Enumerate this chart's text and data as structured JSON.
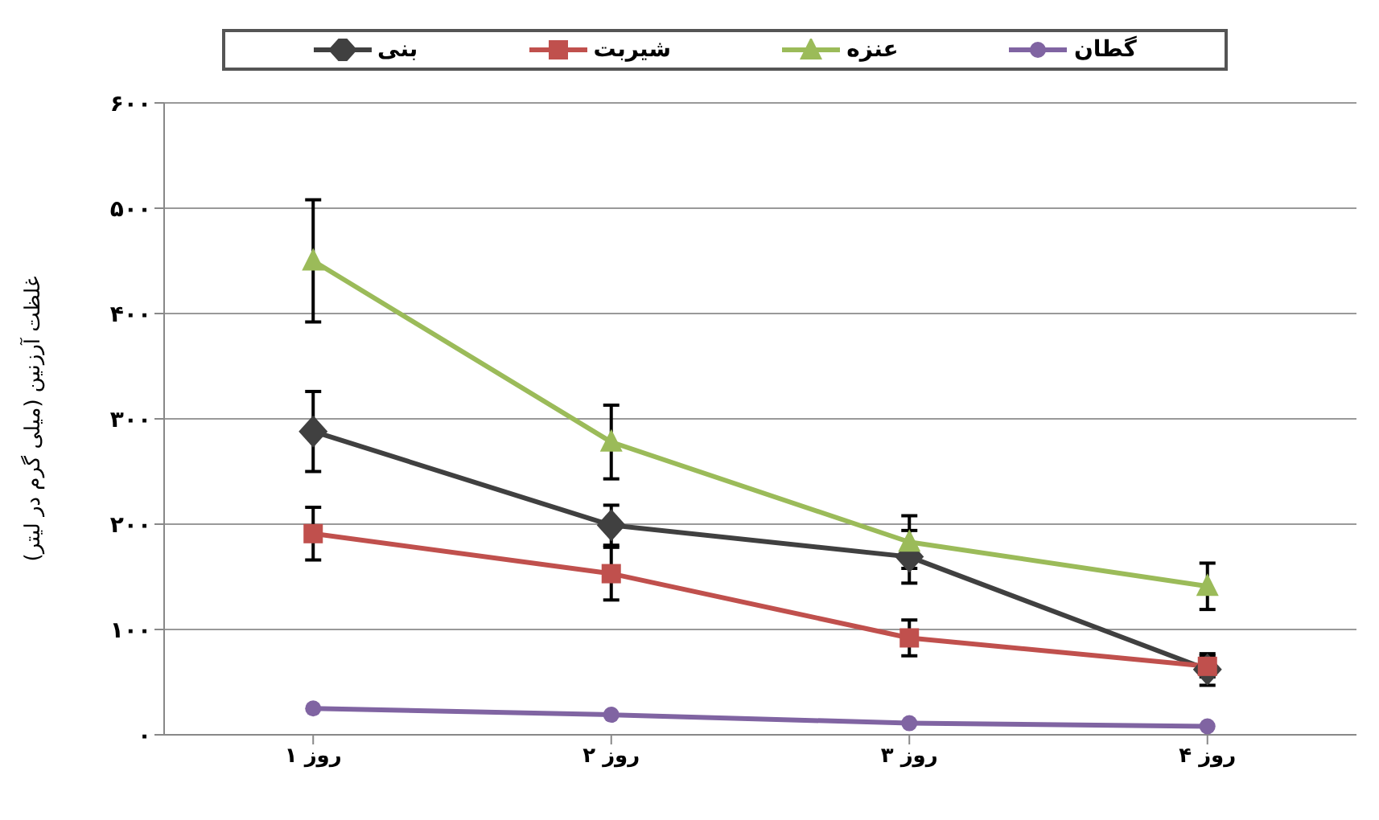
{
  "chart_data": {
    "type": "line",
    "ylabel": "غلظت آرزنین (میلی گرم در لیتر)",
    "categories": [
      "روز ۱",
      "روز ۲",
      "روز ۳",
      "روز ۴"
    ],
    "series": [
      {
        "name": "بنی",
        "color": "#404040",
        "marker": "diamond",
        "values": [
          288,
          199,
          169,
          62
        ],
        "errors": [
          38,
          19,
          25,
          15
        ]
      },
      {
        "name": "شیربت",
        "color": "#c0504d",
        "marker": "square",
        "values": [
          191,
          153,
          92,
          65
        ],
        "errors": [
          25,
          25,
          17,
          10
        ]
      },
      {
        "name": "عنزه",
        "color": "#9bbb59",
        "marker": "triangle",
        "values": [
          450,
          278,
          183,
          141
        ],
        "errors": [
          58,
          35,
          25,
          22
        ]
      },
      {
        "name": "گطان",
        "color": "#8064a2",
        "marker": "circle",
        "values": [
          25,
          19,
          11,
          8
        ]
      }
    ],
    "ylim": [
      0,
      600
    ],
    "yticks": [
      {
        "value": 0,
        "label": "۰"
      },
      {
        "value": 100,
        "label": "۱۰۰"
      },
      {
        "value": 200,
        "label": "۲۰۰"
      },
      {
        "value": 300,
        "label": "۳۰۰"
      },
      {
        "value": 400,
        "label": "۴۰۰"
      },
      {
        "value": 500,
        "label": "۵۰۰"
      },
      {
        "value": 600,
        "label": "۶۰۰"
      }
    ],
    "grid": "y",
    "legend": "top",
    "line_style": "solid"
  }
}
